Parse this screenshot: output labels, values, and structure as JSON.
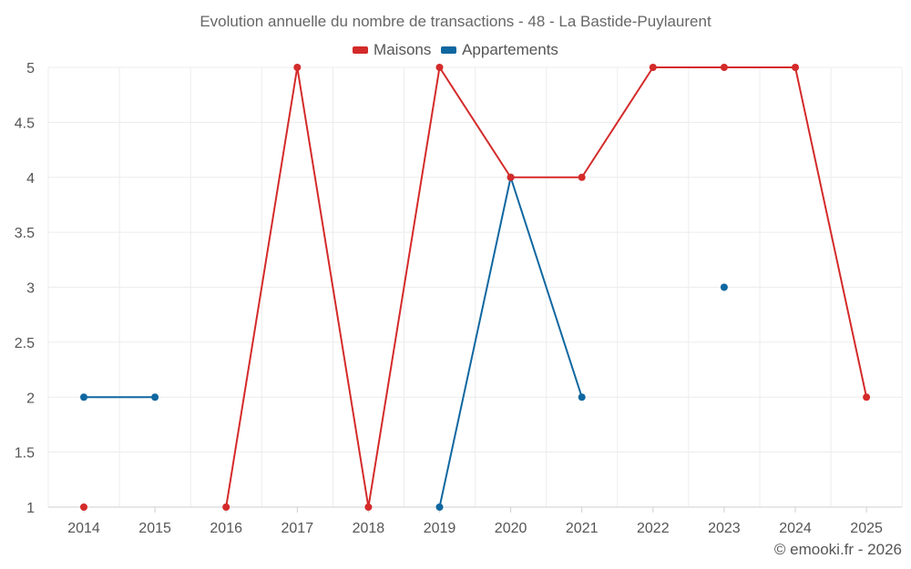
{
  "chart_data": {
    "type": "line",
    "title": "Evolution annuelle du nombre de transactions - 48 - La Bastide-Puylaurent",
    "x": [
      "2014",
      "2015",
      "2016",
      "2017",
      "2018",
      "2019",
      "2020",
      "2021",
      "2022",
      "2023",
      "2024",
      "2025"
    ],
    "ylim": [
      1,
      5
    ],
    "yticks": [
      "1",
      "1.5",
      "2",
      "2.5",
      "3",
      "3.5",
      "4",
      "4.5",
      "5"
    ],
    "grid": true,
    "legend_position": "top-center",
    "series": [
      {
        "name": "Maisons",
        "color": "#d42a2a",
        "values": [
          1,
          null,
          1,
          5,
          1,
          5,
          4,
          4,
          5,
          5,
          5,
          2
        ]
      },
      {
        "name": "Appartements",
        "color": "#0f67a0",
        "values": [
          2,
          2,
          null,
          null,
          null,
          1,
          4,
          2,
          null,
          3,
          null,
          null
        ]
      }
    ]
  },
  "credit": "© emooki.fr - 2026"
}
